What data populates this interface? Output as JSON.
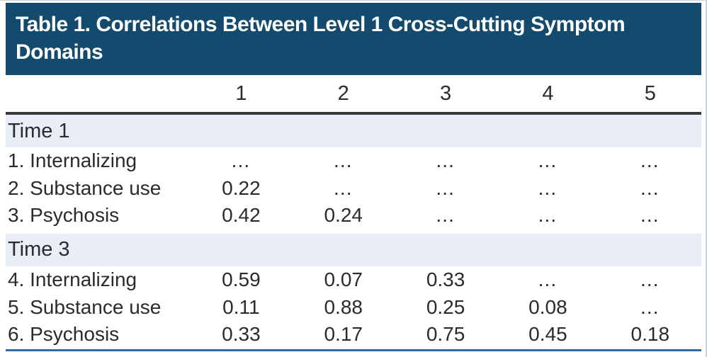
{
  "title_bar": {
    "title": "Table 1. Correlations Between Level 1 Cross-Cutting Symptom Domains"
  },
  "table": {
    "column_headers": [
      "1",
      "2",
      "3",
      "4",
      "5"
    ],
    "sections": [
      {
        "label": "Time 1",
        "rows": [
          {
            "label": "1. Internalizing",
            "values": [
              "…",
              "…",
              "…",
              "…",
              "…"
            ]
          },
          {
            "label": "2. Substance use",
            "values": [
              "0.22",
              "…",
              "…",
              "…",
              "…"
            ]
          },
          {
            "label": "3. Psychosis",
            "values": [
              "0.42",
              "0.24",
              "…",
              "…",
              "…"
            ]
          }
        ]
      },
      {
        "label": "Time 3",
        "rows": [
          {
            "label": "4. Internalizing",
            "values": [
              "0.59",
              "0.07",
              "0.33",
              "…",
              "…"
            ]
          },
          {
            "label": "5. Substance use",
            "values": [
              "0.11",
              "0.88",
              "0.25",
              "0.08",
              "…"
            ]
          },
          {
            "label": "6. Psychosis",
            "values": [
              "0.33",
              "0.17",
              "0.75",
              "0.45",
              "0.18"
            ]
          }
        ]
      }
    ]
  },
  "colors": {
    "title_bar_bg": "#134A6D",
    "title_text": "#FFFFFF",
    "section_band_bg": "#E9EDF8",
    "header_rule": "#3A3A3A",
    "bottom_rule": "#36699B",
    "body_text": "#2B2B2B"
  }
}
